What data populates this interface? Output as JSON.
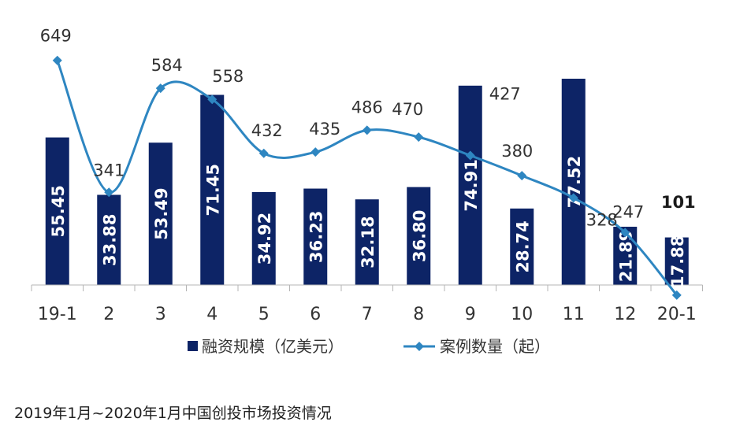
{
  "caption": "2019年1月~2020年1月中国创投市场投资情况",
  "chart_data": {
    "type": "bar",
    "categories": [
      "19-1",
      "2",
      "3",
      "4",
      "5",
      "6",
      "7",
      "8",
      "9",
      "10",
      "11",
      "12",
      "20-1"
    ],
    "series": [
      {
        "name": "融资规模（亿美元）",
        "type": "bar",
        "values": [
          55.45,
          33.88,
          53.49,
          71.45,
          34.92,
          36.23,
          32.18,
          36.8,
          74.91,
          28.74,
          77.52,
          21.89,
          17.88
        ],
        "labels": [
          "55.45",
          "33.88",
          "53.49",
          "71.45",
          "34.92",
          "36.23",
          "32.18",
          "36.80",
          "74.91",
          "28.74",
          "77.52",
          "21.89",
          "17.88"
        ],
        "color": "#0d2466"
      },
      {
        "name": "案例数量（起）",
        "type": "line",
        "values": [
          649,
          341,
          584,
          558,
          432,
          435,
          486,
          470,
          427,
          380,
          328,
          247,
          101
        ],
        "labels": [
          "649",
          "341",
          "584",
          "558",
          "432",
          "435",
          "486",
          "470",
          "427",
          "380",
          "328",
          "247",
          "101"
        ],
        "color": "#2e86c1"
      }
    ],
    "legend_position": "bottom",
    "grid": false
  }
}
